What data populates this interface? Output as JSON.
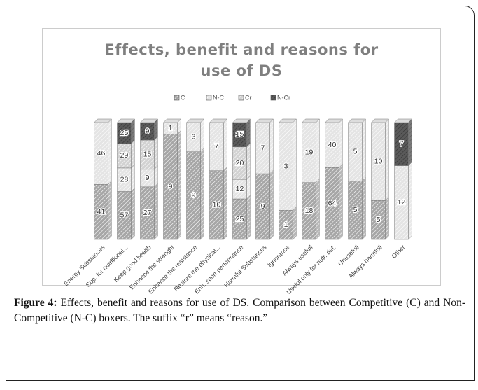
{
  "chart_data": {
    "type": "bar",
    "stacked_percent": true,
    "title": "Effects, benefit and reasons for use of DS",
    "categories": [
      "Energy Substances",
      "Sup. for nutritional...",
      "Keep good health",
      "Enhance the strenght",
      "Enhance the resistance",
      "Restore the physical...",
      "Enh. sport performance",
      "Harmful Substances",
      "Ignorance",
      "Always usefull",
      "Useful only for nutr. def.",
      "Unusefull",
      "Always harmfull",
      "Other"
    ],
    "series": [
      {
        "name": "C",
        "color": "#a6a6a6",
        "values": [
          41,
          57,
          27,
          9,
          9,
          10,
          25,
          9,
          1,
          18,
          64,
          5,
          5,
          null
        ]
      },
      {
        "name": "N-C",
        "color": "#e4e4e4",
        "values": [
          46,
          28,
          9,
          1,
          3,
          7,
          12,
          7,
          3,
          19,
          40,
          5,
          10,
          12
        ]
      },
      {
        "name": "Cr",
        "color": "#d2d2d2",
        "values": [
          null,
          29,
          15,
          null,
          null,
          null,
          20,
          null,
          null,
          null,
          null,
          null,
          null,
          null
        ]
      },
      {
        "name": "N-Cr",
        "color": "#5a5a5a",
        "values": [
          null,
          25,
          9,
          null,
          null,
          null,
          15,
          null,
          null,
          null,
          null,
          null,
          null,
          7
        ]
      }
    ]
  },
  "caption": {
    "label": "Figure 4:",
    "text": " Effects, benefit and reasons for use of DS. Comparison between Competitive (C) and Non-Competitive (N-C) boxers. The suffix “r” means “reason.”"
  }
}
